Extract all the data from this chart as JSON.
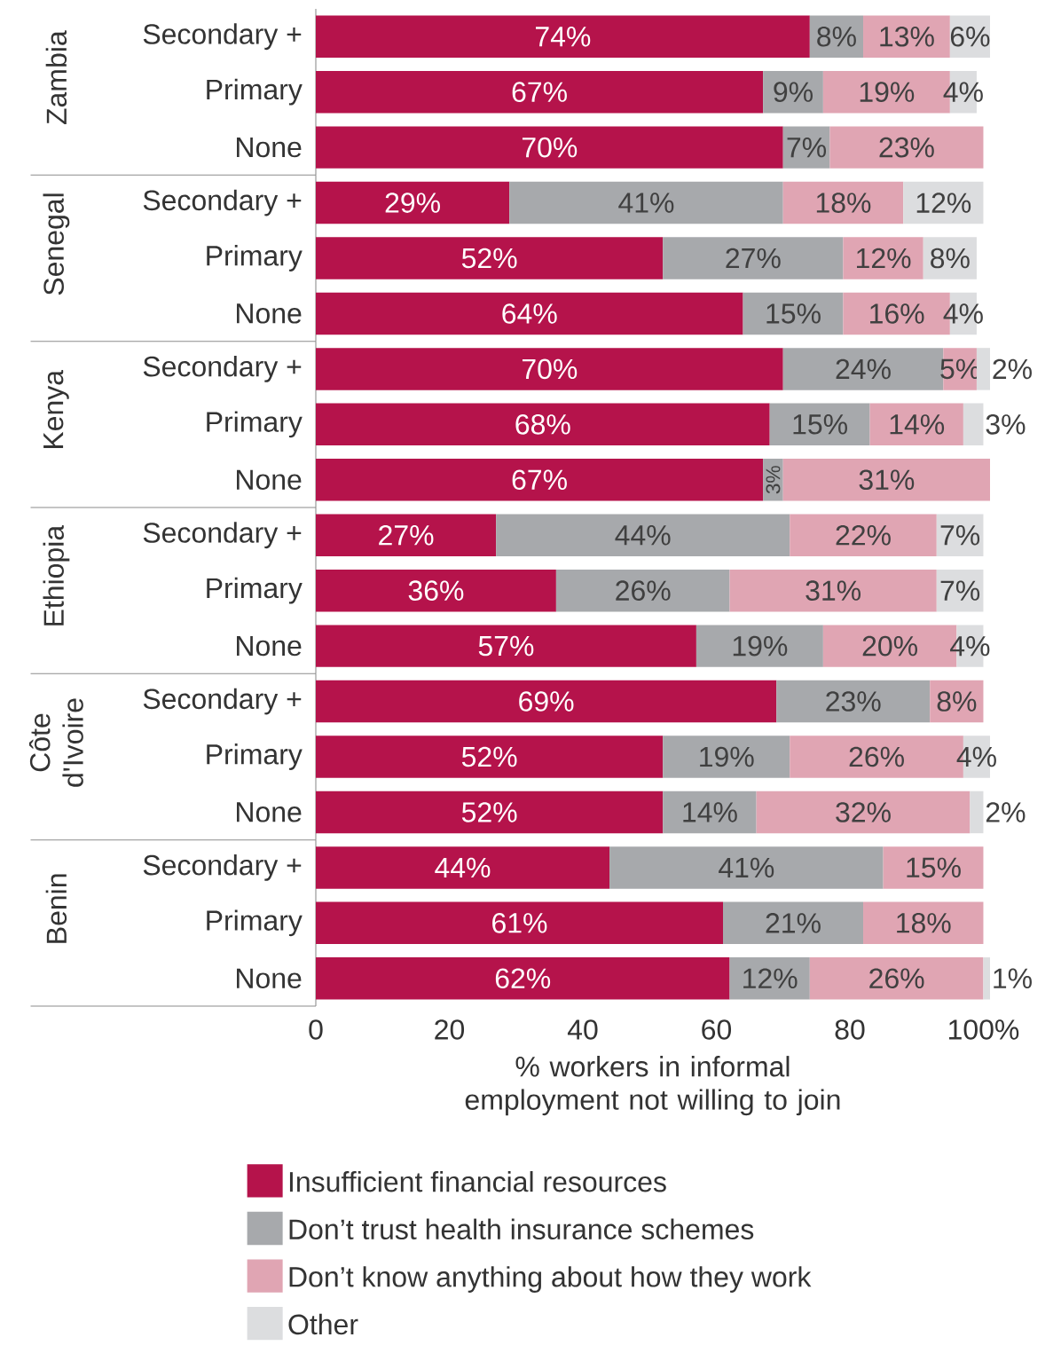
{
  "chart_data": [
    {
      "type": "bar",
      "orientation": "horizontal",
      "stacked": true,
      "title": "Zambia",
      "categories": [
        "Secondary +",
        "Primary",
        "None"
      ],
      "xlim": [
        0,
        101
      ],
      "tick_labels": "y",
      "series": [
        {
          "color": "#b5134b",
          "values": [
            74,
            67,
            70
          ],
          "value_labels": [
            "74%",
            "67%",
            "70%"
          ]
        },
        {
          "color": "#a7a9ac",
          "values": [
            8,
            9,
            7
          ],
          "value_labels": [
            "8%",
            "9%",
            "7%"
          ]
        },
        {
          "color": "#e0a5b3",
          "values": [
            13,
            19,
            23
          ],
          "value_labels": [
            "13%",
            "19%",
            "23%"
          ]
        },
        {
          "color": "#dcdddf",
          "values": [
            6,
            4,
            null
          ],
          "value_labels": [
            "6%",
            "4%",
            null
          ]
        }
      ]
    },
    {
      "type": "bar",
      "orientation": "horizontal",
      "stacked": true,
      "title": "Senegal",
      "categories": [
        "Secondary +",
        "Primary",
        "None"
      ],
      "xlim": [
        0,
        101
      ],
      "tick_labels": "y",
      "series": [
        {
          "color": "#b5134b",
          "values": [
            29,
            52,
            64
          ],
          "value_labels": [
            "29%",
            "52%",
            "64%"
          ]
        },
        {
          "color": "#a7a9ac",
          "values": [
            41,
            27,
            15
          ],
          "value_labels": [
            "41%",
            "27%",
            "15%"
          ]
        },
        {
          "color": "#e0a5b3",
          "values": [
            18,
            12,
            16
          ],
          "value_labels": [
            "18%",
            "12%",
            "16%"
          ]
        },
        {
          "color": "#dcdddf",
          "values": [
            12,
            8,
            4
          ],
          "value_labels": [
            "12%",
            "8%",
            "4%"
          ]
        }
      ]
    },
    {
      "type": "bar",
      "orientation": "horizontal",
      "stacked": true,
      "title": "Kenya",
      "categories": [
        "Secondary +",
        "Primary",
        "None"
      ],
      "xlim": [
        0,
        101
      ],
      "tick_labels": "y",
      "series": [
        {
          "color": "#b5134b",
          "values": [
            70,
            68,
            67
          ],
          "value_labels": [
            "70%",
            "68%",
            "67%"
          ]
        },
        {
          "color": "#a7a9ac",
          "values": [
            24,
            15,
            3
          ],
          "value_labels": [
            "24%",
            "15%",
            "3%"
          ]
        },
        {
          "color": "#e0a5b3",
          "values": [
            5,
            14,
            31
          ],
          "value_labels": [
            "5%",
            "14%",
            "31%"
          ]
        },
        {
          "color": "#dcdddf",
          "values": [
            2,
            3,
            null
          ],
          "value_labels": [
            "2%",
            "3%",
            null
          ]
        }
      ]
    },
    {
      "type": "bar",
      "orientation": "horizontal",
      "stacked": true,
      "title": "Ethiopia",
      "categories": [
        "Secondary +",
        "Primary",
        "None"
      ],
      "xlim": [
        0,
        101
      ],
      "tick_labels": "y",
      "series": [
        {
          "color": "#b5134b",
          "values": [
            27,
            36,
            57
          ],
          "value_labels": [
            "27%",
            "36%",
            "57%"
          ]
        },
        {
          "color": "#a7a9ac",
          "values": [
            44,
            26,
            19
          ],
          "value_labels": [
            "44%",
            "26%",
            "19%"
          ]
        },
        {
          "color": "#e0a5b3",
          "values": [
            22,
            31,
            20
          ],
          "value_labels": [
            "22%",
            "31%",
            "20%"
          ]
        },
        {
          "color": "#dcdddf",
          "values": [
            7,
            7,
            4
          ],
          "value_labels": [
            "7%",
            "7%",
            "4%"
          ]
        }
      ]
    },
    {
      "type": "bar",
      "orientation": "horizontal",
      "stacked": true,
      "title": "Côte d'Ivoire",
      "categories": [
        "Secondary +",
        "Primary",
        "None"
      ],
      "xlim": [
        0,
        101
      ],
      "tick_labels": "y",
      "series": [
        {
          "color": "#b5134b",
          "values": [
            69,
            52,
            52
          ],
          "value_labels": [
            "69%",
            "52%",
            "52%"
          ]
        },
        {
          "color": "#a7a9ac",
          "values": [
            23,
            19,
            14
          ],
          "value_labels": [
            "23%",
            "19%",
            "14%"
          ]
        },
        {
          "color": "#e0a5b3",
          "values": [
            8,
            26,
            32
          ],
          "value_labels": [
            "8%",
            "26%",
            "32%"
          ]
        },
        {
          "color": "#dcdddf",
          "values": [
            null,
            4,
            2
          ],
          "value_labels": [
            null,
            "4%",
            "2%"
          ]
        }
      ]
    },
    {
      "type": "bar",
      "orientation": "horizontal",
      "stacked": true,
      "title": "Benin",
      "categories": [
        "Secondary +",
        "Primary",
        "None"
      ],
      "xlim": [
        0,
        101
      ],
      "xticks": [
        0,
        20,
        40,
        60,
        80,
        {
          "value": 100,
          "label": "100%"
        }
      ],
      "xlabel": "% workers in informal employment not willing to join",
      "legend": "bottom",
      "series": [
        {
          "name": "Insufficient financial resources",
          "color": "#b5134b",
          "values": [
            44,
            61,
            62
          ],
          "value_labels": [
            "44%",
            "61%",
            "62%"
          ]
        },
        {
          "name": "Don’t trust health insurance schemes",
          "color": "#a7a9ac",
          "values": [
            41,
            21,
            12
          ],
          "value_labels": [
            "41%",
            "21%",
            "12%"
          ]
        },
        {
          "name": "Don’t know anything about how they work",
          "color": "#e0a5b3",
          "values": [
            15,
            18,
            26
          ],
          "value_labels": [
            "15%",
            "18%",
            "26%"
          ]
        },
        {
          "name": "Other",
          "color": "#dcdddf",
          "values": [
            null,
            null,
            1
          ],
          "value_labels": [
            null,
            null,
            "1%"
          ]
        }
      ]
    }
  ]
}
